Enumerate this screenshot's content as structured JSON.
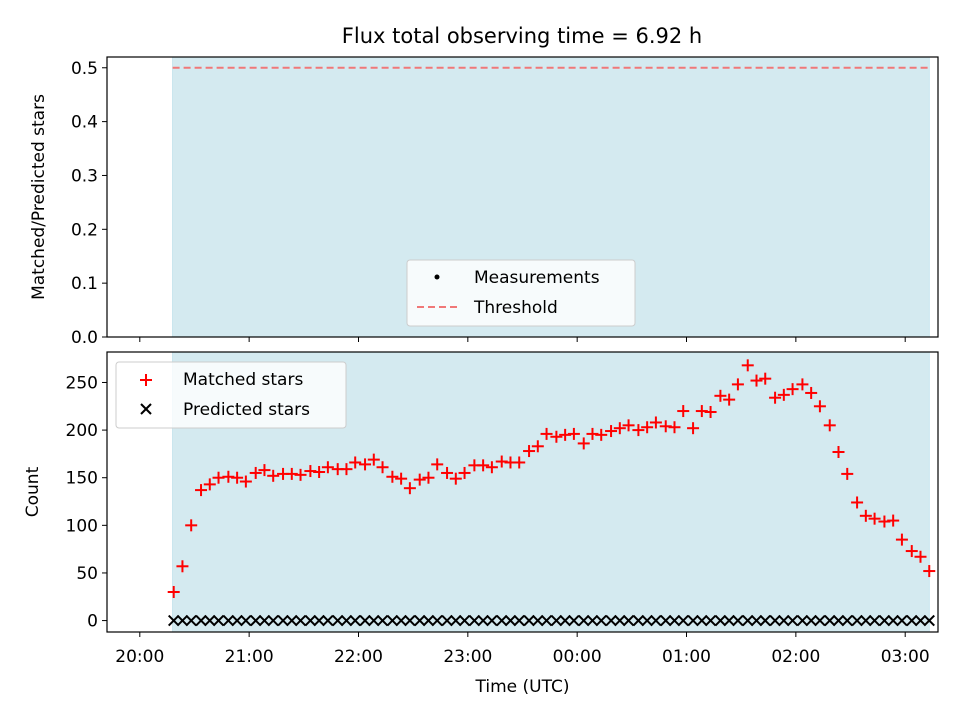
{
  "title": "Flux total observing time = 6.92 h",
  "colors": {
    "shade": "#d4eaf0",
    "shade_edge": "#add8e6",
    "matched": "#ff0000",
    "predicted": "#000000",
    "threshold": "#f07878",
    "measurement": "#000000"
  },
  "chart_data": [
    {
      "type": "scatter",
      "ylabel": "Matched/Predicted stars",
      "ylim": [
        0,
        0.52
      ],
      "yticks": [
        "0.0",
        "0.1",
        "0.2",
        "0.3",
        "0.4",
        "0.5"
      ],
      "xlim": [
        -0.3,
        7.3
      ],
      "observing_window": [
        0.3,
        7.22
      ],
      "threshold": 0.5,
      "grid": false,
      "legend_position": "lower center",
      "legend": [
        {
          "label": "Measurements",
          "marker": "dot"
        },
        {
          "label": "Threshold",
          "marker": "dashed-line"
        }
      ],
      "series": [
        {
          "name": "Measurements",
          "values": []
        },
        {
          "name": "Threshold",
          "values": [
            0.5
          ]
        }
      ]
    },
    {
      "type": "scatter",
      "ylabel": "Count",
      "xlabel": "Time (UTC)",
      "ylim": [
        -12,
        282
      ],
      "yticks": [
        "0",
        "50",
        "100",
        "150",
        "200",
        "250"
      ],
      "xlim": [
        -0.3,
        7.3
      ],
      "xticks": [
        "20:00",
        "21:00",
        "22:00",
        "23:00",
        "00:00",
        "01:00",
        "02:00",
        "03:00"
      ],
      "grid": false,
      "legend_position": "upper left",
      "legend": [
        {
          "label": "Matched stars",
          "marker": "plus"
        },
        {
          "label": "Predicted stars",
          "marker": "x"
        }
      ],
      "x_hours_since_20": [
        0.31,
        0.39,
        0.47,
        0.56,
        0.64,
        0.72,
        0.81,
        0.89,
        0.97,
        1.06,
        1.14,
        1.22,
        1.31,
        1.39,
        1.47,
        1.56,
        1.64,
        1.72,
        1.81,
        1.89,
        1.97,
        2.06,
        2.14,
        2.22,
        2.31,
        2.39,
        2.47,
        2.56,
        2.64,
        2.72,
        2.81,
        2.89,
        2.97,
        3.06,
        3.14,
        3.22,
        3.31,
        3.39,
        3.47,
        3.56,
        3.64,
        3.72,
        3.81,
        3.89,
        3.97,
        4.06,
        4.14,
        4.22,
        4.31,
        4.39,
        4.47,
        4.56,
        4.64,
        4.72,
        4.81,
        4.89,
        4.97,
        5.06,
        5.14,
        5.22,
        5.31,
        5.39,
        5.47,
        5.56,
        5.64,
        5.72,
        5.81,
        5.89,
        5.97,
        6.06,
        6.14,
        6.22,
        6.31,
        6.39,
        6.47,
        6.56,
        6.64,
        6.72,
        6.81,
        6.89,
        6.97,
        7.06,
        7.14,
        7.22
      ],
      "series": [
        {
          "name": "Matched stars",
          "values": [
            30,
            57,
            100,
            137,
            143,
            150,
            151,
            150,
            146,
            155,
            158,
            152,
            154,
            154,
            153,
            157,
            156,
            161,
            159,
            159,
            166,
            164,
            169,
            161,
            151,
            149,
            139,
            148,
            150,
            164,
            155,
            149,
            155,
            163,
            163,
            161,
            167,
            166,
            166,
            178,
            183,
            196,
            193,
            195,
            196,
            186,
            196,
            195,
            199,
            202,
            205,
            200,
            203,
            208,
            204,
            203,
            220,
            202,
            220,
            219,
            236,
            232,
            248,
            268,
            252,
            254,
            234,
            237,
            243,
            248,
            239,
            225,
            205,
            177,
            154,
            124,
            110,
            107,
            104,
            105,
            85,
            73,
            67,
            52
          ]
        },
        {
          "name": "Predicted stars",
          "values": [
            0,
            0,
            0,
            0,
            0,
            0,
            0,
            0,
            0,
            0,
            0,
            0,
            0,
            0,
            0,
            0,
            0,
            0,
            0,
            0,
            0,
            0,
            0,
            0,
            0,
            0,
            0,
            0,
            0,
            0,
            0,
            0,
            0,
            0,
            0,
            0,
            0,
            0,
            0,
            0,
            0,
            0,
            0,
            0,
            0,
            0,
            0,
            0,
            0,
            0,
            0,
            0,
            0,
            0,
            0,
            0,
            0,
            0,
            0,
            0,
            0,
            0,
            0,
            0,
            0,
            0,
            0,
            0,
            0,
            0,
            0,
            0,
            0,
            0,
            0,
            0,
            0,
            0,
            0,
            0,
            0,
            0,
            0,
            0
          ]
        }
      ]
    }
  ]
}
